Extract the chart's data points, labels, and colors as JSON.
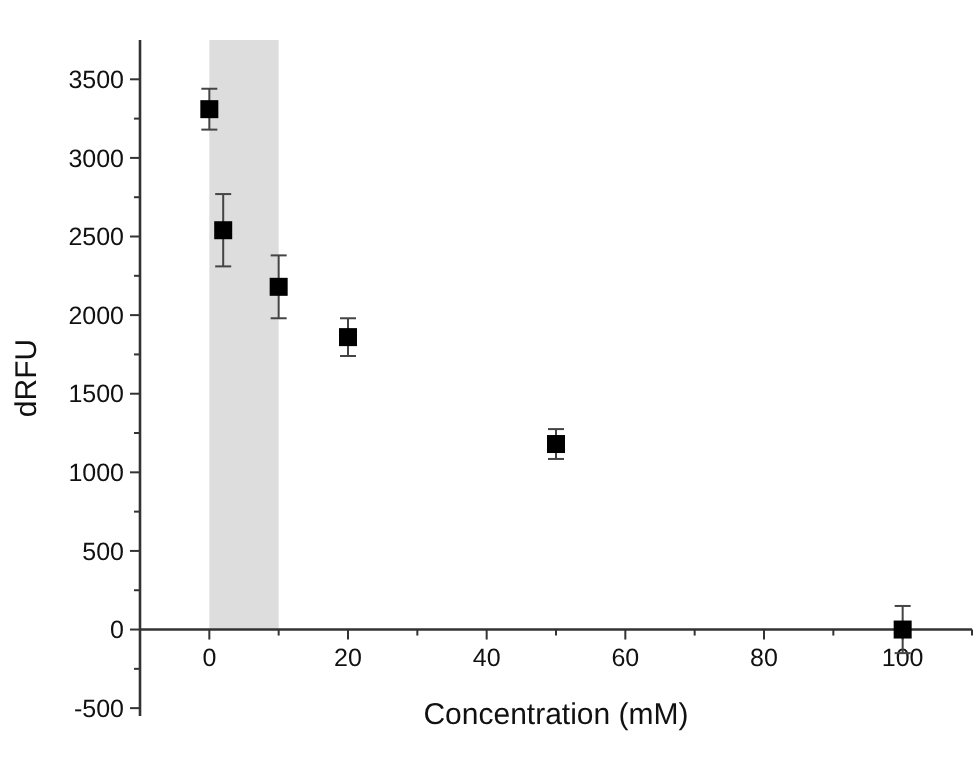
{
  "chart_data": {
    "type": "scatter",
    "xlabel": "Concentration (mM)",
    "ylabel": "dRFU",
    "x": [
      0,
      2,
      10,
      20,
      50,
      100
    ],
    "series": [
      {
        "color": "#000000",
        "values": [
          3310,
          2540,
          2180,
          1860,
          1180,
          0
        ],
        "errors": [
          130,
          230,
          200,
          120,
          95,
          150
        ]
      }
    ],
    "marker": "square",
    "grid": false,
    "xlim": [
      -10,
      110
    ],
    "ylim": [
      -550,
      3750
    ],
    "xticks": [
      0,
      {
        "value": 10,
        "label": null
      },
      20,
      {
        "value": 30,
        "label": null
      },
      40,
      {
        "value": 50,
        "label": null
      },
      60,
      {
        "value": 70,
        "label": null
      },
      80,
      {
        "value": 90,
        "label": null
      },
      100,
      {
        "value": 110,
        "label": null
      }
    ],
    "yticks": [
      -500,
      {
        "value": -250,
        "label": null
      },
      0,
      {
        "value": 250,
        "label": null
      },
      500,
      {
        "value": 750,
        "label": null
      },
      1000,
      {
        "value": 1250,
        "label": null
      },
      1500,
      {
        "value": 1750,
        "label": null
      },
      2000,
      {
        "value": 2250,
        "label": null
      },
      2500,
      {
        "value": 2750,
        "label": null
      },
      3000,
      {
        "value": 3250,
        "label": null
      },
      3500
    ],
    "bands": [
      {
        "axis": "x",
        "from": 0,
        "to": 10,
        "color": "#dddddd"
      }
    ]
  }
}
